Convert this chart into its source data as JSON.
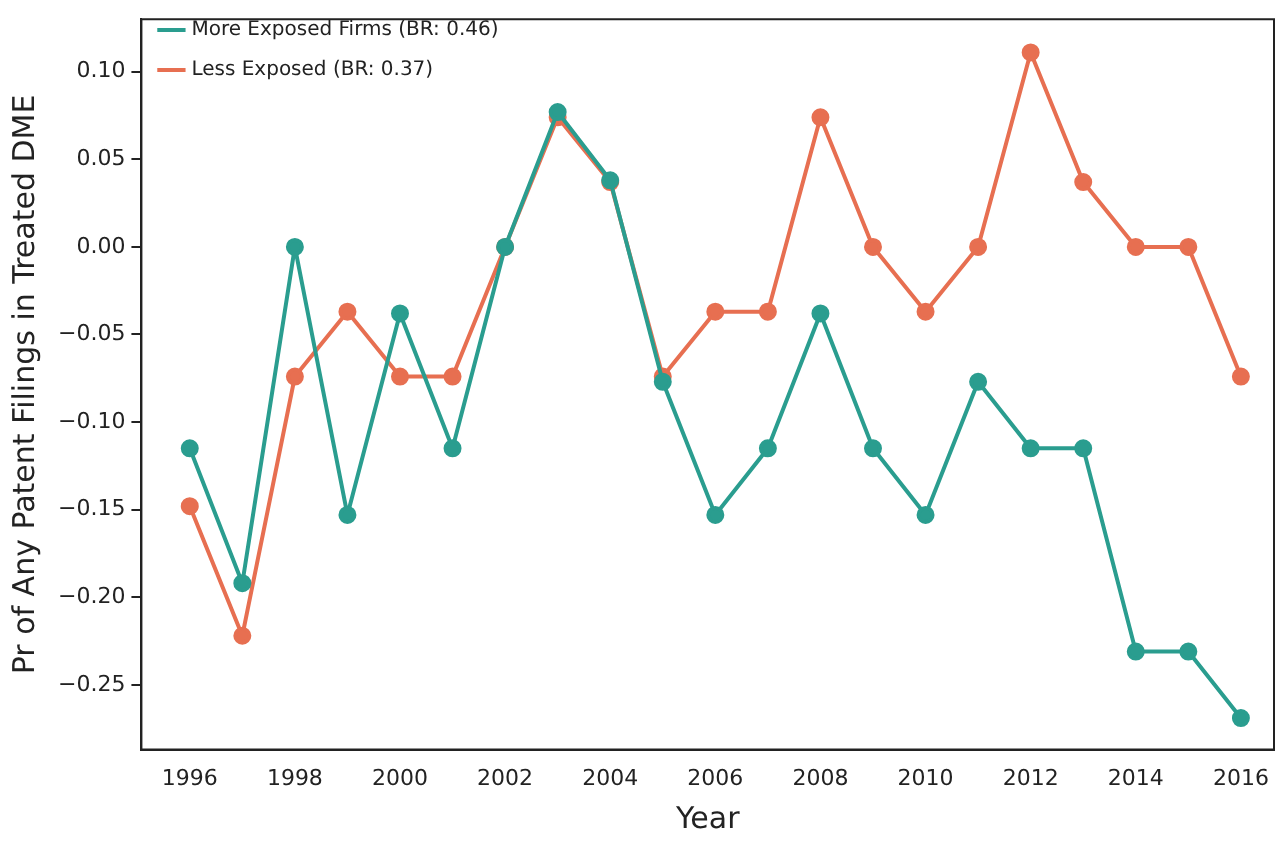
{
  "chart_data": {
    "type": "line",
    "xlabel": "Year",
    "ylabel": "Pr of Any Patent Filings in Treated DME",
    "x": [
      1996,
      1997,
      1998,
      1999,
      2000,
      2001,
      2002,
      2003,
      2004,
      2005,
      2006,
      2007,
      2008,
      2009,
      2010,
      2011,
      2012,
      2013,
      2014,
      2015,
      2016
    ],
    "series": [
      {
        "name": "More Exposed Firms (BR: 0.46)",
        "color": "#2a9d8f",
        "values": [
          -0.115,
          -0.192,
          0,
          -0.153,
          -0.038,
          -0.115,
          0,
          0.077,
          0.038,
          -0.077,
          -0.153,
          -0.115,
          -0.038,
          -0.115,
          -0.153,
          -0.077,
          -0.115,
          -0.115,
          -0.231,
          -0.231,
          -0.269
        ]
      },
      {
        "name": "Less Exposed (BR: 0.37)",
        "color": "#e76f51",
        "values": [
          -0.148,
          -0.222,
          -0.074,
          -0.037,
          -0.074,
          -0.074,
          0,
          0.074,
          0.037,
          -0.074,
          -0.037,
          -0.037,
          0.074,
          0,
          -0.037,
          0,
          0.111,
          0.037,
          0,
          0,
          -0.074
        ]
      }
    ],
    "xlim": [
      1995.08,
      2016.63
    ],
    "xticks": [
      1996,
      1998,
      2000,
      2002,
      2004,
      2006,
      2008,
      2010,
      2012,
      2014,
      2016
    ],
    "ylim": [
      -0.287,
      0.13
    ],
    "yticks": [
      {
        "value": -0.25,
        "label": "−0.25"
      },
      {
        "value": -0.2,
        "label": "−0.20"
      },
      {
        "value": -0.15,
        "label": "−0.15"
      },
      {
        "value": -0.1,
        "label": "−0.10"
      },
      {
        "value": -0.05,
        "label": "−0.05"
      },
      {
        "value": 0,
        "label": "0.00"
      },
      {
        "value": 0.05,
        "label": "0.05"
      },
      {
        "value": 0.1,
        "label": "0.10"
      }
    ],
    "grid": false,
    "legend": "top left",
    "marker": "circle",
    "line_style": "solid"
  }
}
